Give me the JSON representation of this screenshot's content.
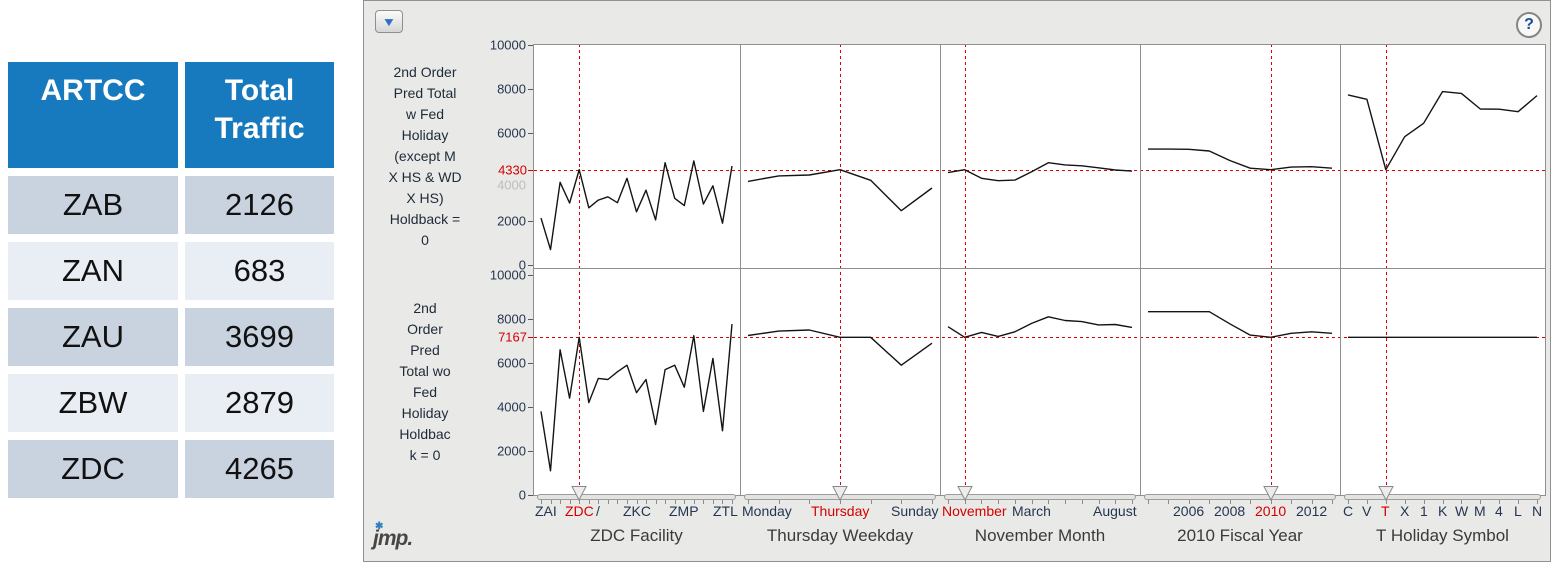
{
  "table": {
    "headers": [
      "ARTCC",
      "Total Traffic"
    ],
    "rows": [
      {
        "artcc": "ZAB",
        "total": "2126"
      },
      {
        "artcc": "ZAN",
        "total": "683"
      },
      {
        "artcc": "ZAU",
        "total": "3699"
      },
      {
        "artcc": "ZBW",
        "total": "2879"
      },
      {
        "artcc": "ZDC",
        "total": "4265"
      }
    ],
    "colors": {
      "header_bg": "#187abe",
      "header_text": "#ffffff",
      "row_dark": "#c9d3e0",
      "row_light": "#e9edf4"
    }
  },
  "profiler": {
    "toolbar": {
      "disclosure_glyph": "▼",
      "help_glyph": "?"
    },
    "logo_text": "jmp.",
    "logo_star_glyph": "✱",
    "colors": {
      "panel_bg": "#e9eae8",
      "accent_red": "#d40000",
      "dash_red": "#e00000",
      "line": "#141414",
      "plot_border": "#8f8f8f",
      "tick_text": "#24364f",
      "icon_blue": "#2d6fc4"
    },
    "y_axis": {
      "min": 0,
      "max": 10000,
      "tick_step": 2000
    },
    "responses": [
      {
        "label_lines": "2nd Order\nPred Total\nw Fed\nHoliday\n(except M\nX HS & WD\nX HS)\nHoldback =\n0",
        "current_value": 4330,
        "yticks": [
          10000,
          8000,
          6000,
          2000,
          0
        ],
        "ghost_tick": 4000
      },
      {
        "label_lines": "2nd\nOrder\nPred\nTotal wo\nFed\nHoliday\nHoldbac\nk = 0",
        "current_value": 7167,
        "yticks": [
          10000,
          8000,
          6000,
          4000,
          2000,
          0
        ]
      }
    ],
    "factors": [
      {
        "title": "ZDC Facility",
        "n": 21,
        "selected_index": 4,
        "tick_labels": [
          {
            "text": "ZAI",
            "index": 0
          },
          {
            "text": "/",
            "index": 6
          },
          {
            "text": "ZKC",
            "index": 10
          },
          {
            "text": "ZMP",
            "index": 15
          },
          {
            "text": "ZTL",
            "index": 20
          },
          {
            "text": "ZDC",
            "index": 4,
            "red": true
          }
        ]
      },
      {
        "title": "Thursday Weekday",
        "n": 7,
        "selected_index": 3,
        "tick_labels": [
          {
            "text": "Monday",
            "index": 0
          },
          {
            "text": "Sunday",
            "index": 6
          },
          {
            "text": "Thursday",
            "index": 3,
            "red": true
          }
        ]
      },
      {
        "title": "November Month",
        "n": 12,
        "selected_index": 1,
        "tick_labels": [
          {
            "text": "March",
            "index": 5
          },
          {
            "text": "August",
            "index": 10
          },
          {
            "text": "November",
            "index": 1,
            "red": true
          }
        ]
      },
      {
        "title": "2010 Fiscal Year",
        "n": 10,
        "selected_index": 6,
        "tick_labels": [
          {
            "text": "2006",
            "index": 2
          },
          {
            "text": "2008",
            "index": 4
          },
          {
            "text": "2012",
            "index": 8
          },
          {
            "text": "2010",
            "index": 6,
            "red": true
          }
        ]
      },
      {
        "title": "T Holiday Symbol",
        "n": 11,
        "selected_index": 2,
        "tick_labels": [
          {
            "text": "C",
            "index": 0
          },
          {
            "text": "V",
            "index": 1
          },
          {
            "text": "X",
            "index": 3
          },
          {
            "text": "1",
            "index": 4
          },
          {
            "text": "K",
            "index": 5
          },
          {
            "text": "W",
            "index": 6
          },
          {
            "text": "M",
            "index": 7
          },
          {
            "text": "4",
            "index": 8
          },
          {
            "text": "L",
            "index": 9
          },
          {
            "text": "N",
            "index": 10
          },
          {
            "text": "T",
            "index": 2,
            "red": true
          }
        ]
      }
    ]
  },
  "chart_data": {
    "type": "line",
    "ylim": [
      0,
      10000
    ],
    "rows": [
      {
        "response": "2nd Order Pred Total w Fed Holiday (except M X HS & WD X HS) Holdback = 0",
        "current_value": 4330,
        "cells": [
          {
            "factor": "ZDC Facility",
            "values": [
              2130,
              700,
              3760,
              2820,
              4330,
              2600,
              2950,
              3100,
              2830,
              3940,
              2420,
              3400,
              2050,
              4650,
              3030,
              2700,
              4730,
              2770,
              3600,
              1900,
              4500
            ]
          },
          {
            "factor": "Thursday Weekday",
            "values": [
              3800,
              4050,
              4090,
              4330,
              3850,
              2470,
              3500
            ]
          },
          {
            "factor": "November Month",
            "values": [
              4200,
              4330,
              3940,
              3830,
              3860,
              4240,
              4650,
              4550,
              4510,
              4420,
              4320,
              4270
            ]
          },
          {
            "factor": "2010 Fiscal Year",
            "values": [
              5270,
              5270,
              5260,
              5180,
              4750,
              4400,
              4330,
              4450,
              4470,
              4400
            ]
          },
          {
            "factor": "T Holiday Symbol",
            "values": [
              7730,
              7530,
              4330,
              5830,
              6440,
              7880,
              7800,
              7090,
              7080,
              6970,
              7700
            ]
          }
        ]
      },
      {
        "response": "2nd Order Pred Total wo Fed Holiday Holdback = 0",
        "current_value": 7167,
        "cells": [
          {
            "factor": "ZDC Facility",
            "values": [
              3800,
              1100,
              6600,
              4400,
              7167,
              4200,
              5300,
              5250,
              5600,
              5900,
              4650,
              5250,
              3200,
              5700,
              5900,
              4900,
              7240,
              3800,
              6210,
              2920,
              7770
            ]
          },
          {
            "factor": "Thursday Weekday",
            "values": [
              7250,
              7450,
              7500,
              7167,
              7170,
              5900,
              6900
            ]
          },
          {
            "factor": "November Month",
            "values": [
              7650,
              7167,
              7390,
              7210,
              7420,
              7800,
              8100,
              7930,
              7880,
              7730,
              7750,
              7620
            ]
          },
          {
            "factor": "2010 Fiscal Year",
            "values": [
              8330,
              8330,
              8330,
              8330,
              7780,
              7270,
              7167,
              7350,
              7420,
              7350
            ]
          },
          {
            "factor": "T Holiday Symbol",
            "values": [
              7167,
              7167,
              7167,
              7167,
              7167,
              7167,
              7167,
              7167,
              7167,
              7167,
              7167
            ]
          }
        ]
      }
    ]
  }
}
